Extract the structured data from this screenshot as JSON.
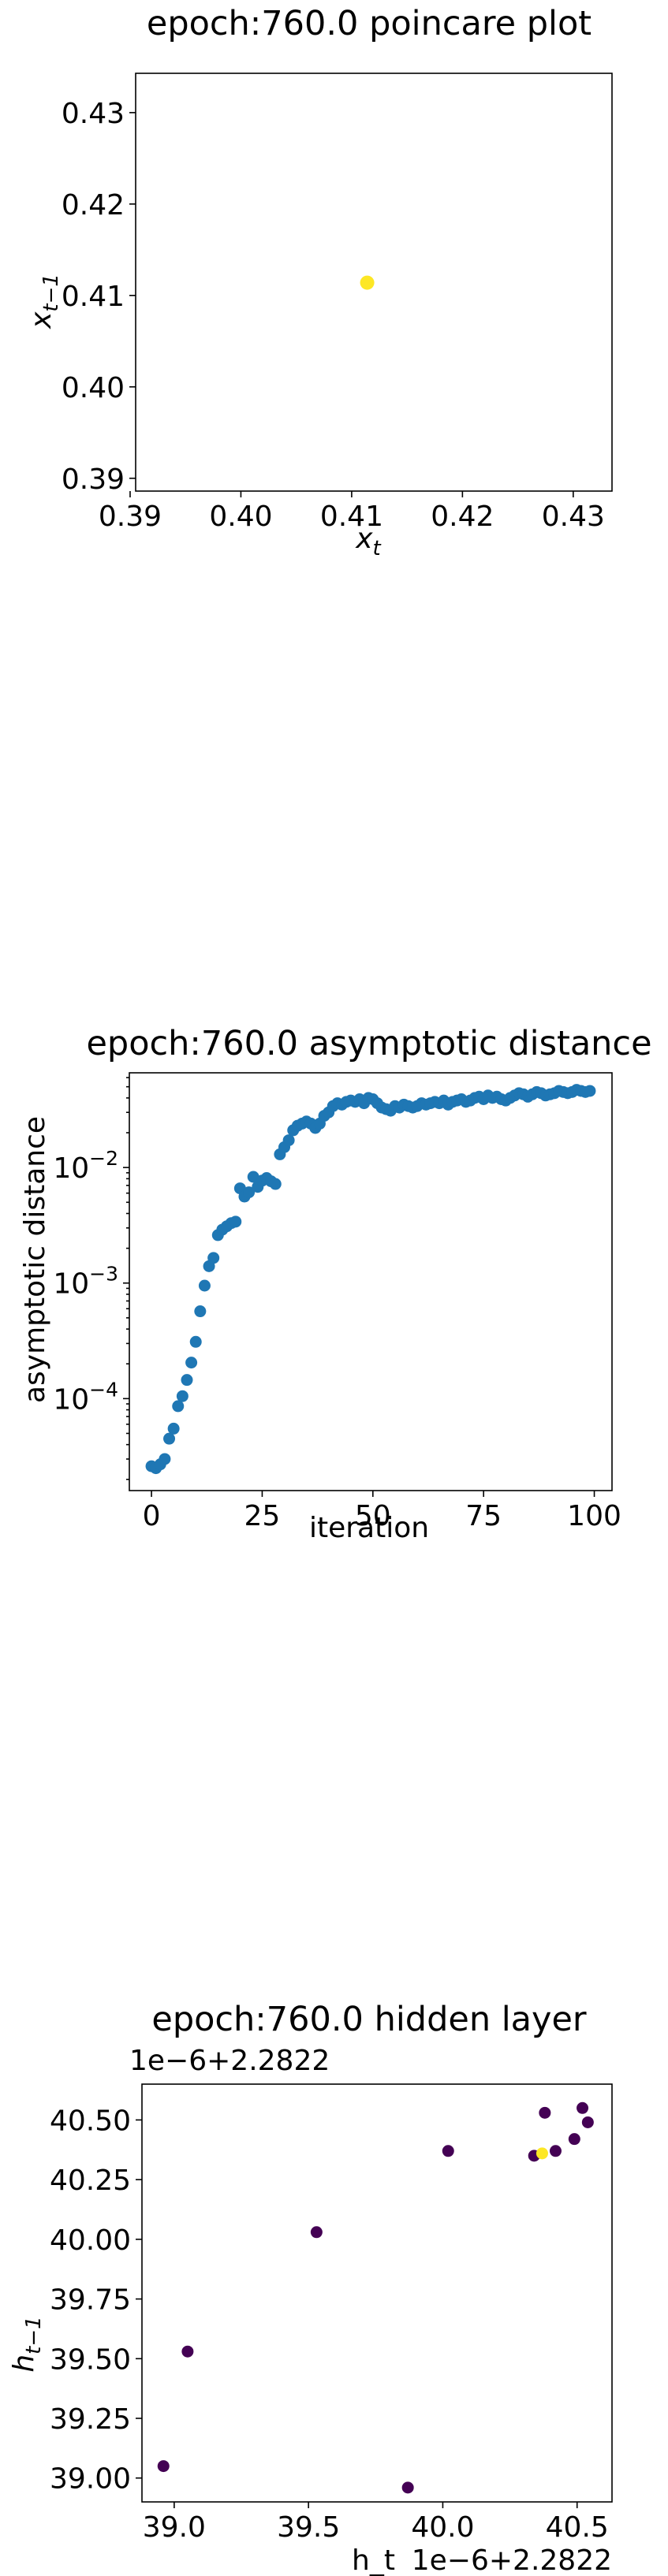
{
  "chart_data": [
    {
      "type": "scatter",
      "title": "epoch:760.0 poincare plot",
      "xlabel": "x_t",
      "ylabel": "x_{t-1}",
      "xlim": [
        0.3905,
        0.4335
      ],
      "ylim": [
        0.3886,
        0.4343
      ],
      "xticks": [
        "0.39",
        "0.40",
        "0.41",
        "0.42",
        "0.43"
      ],
      "yticks": [
        "0.39",
        "0.40",
        "0.41",
        "0.42",
        "0.43"
      ],
      "grid": false,
      "points": [
        {
          "x": 0.4114,
          "y": 0.4114,
          "color": "#fde725"
        }
      ]
    },
    {
      "type": "scatter",
      "title": "epoch:760.0 asymptotic distance",
      "xlabel": "iteration",
      "ylabel": "asymptotic distance",
      "yscale": "log",
      "xlim": [
        -5,
        104
      ],
      "ylim": [
        1.6e-05,
        0.066
      ],
      "xticks": [
        "0",
        "25",
        "50",
        "75",
        "100"
      ],
      "yticks": [
        "10^-4",
        "10^-3",
        "10^-2"
      ],
      "grid": false,
      "color": "#1f77b4",
      "x": [
        0,
        1,
        2,
        3,
        4,
        5,
        6,
        7,
        8,
        9,
        10,
        11,
        12,
        13,
        14,
        15,
        16,
        17,
        18,
        19,
        20,
        21,
        22,
        23,
        24,
        25,
        26,
        27,
        28,
        29,
        30,
        31,
        32,
        33,
        34,
        35,
        36,
        37,
        38,
        39,
        40,
        41,
        42,
        43,
        44,
        45,
        46,
        47,
        48,
        49,
        50,
        51,
        52,
        53,
        54,
        55,
        56,
        57,
        58,
        59,
        60,
        61,
        62,
        63,
        64,
        65,
        66,
        67,
        68,
        69,
        70,
        71,
        72,
        73,
        74,
        75,
        76,
        77,
        78,
        79,
        80,
        81,
        82,
        83,
        84,
        85,
        86,
        87,
        88,
        89,
        90,
        91,
        92,
        93,
        94,
        95,
        96,
        97,
        98,
        99
      ],
      "y": [
        2.6e-05,
        2.5e-05,
        2.7e-05,
        3e-05,
        4.5e-05,
        5.5e-05,
        8.6e-05,
        0.000105,
        0.000145,
        0.000205,
        0.00031,
        0.00057,
        0.00095,
        0.0014,
        0.00165,
        0.0026,
        0.0029,
        0.0031,
        0.0033,
        0.0034,
        0.0066,
        0.0056,
        0.0061,
        0.0083,
        0.0068,
        0.0077,
        0.0081,
        0.0076,
        0.0072,
        0.013,
        0.015,
        0.0172,
        0.021,
        0.023,
        0.024,
        0.025,
        0.024,
        0.022,
        0.024,
        0.028,
        0.03,
        0.034,
        0.036,
        0.035,
        0.037,
        0.038,
        0.037,
        0.039,
        0.036,
        0.04,
        0.039,
        0.036,
        0.033,
        0.032,
        0.031,
        0.034,
        0.033,
        0.035,
        0.034,
        0.033,
        0.034,
        0.036,
        0.035,
        0.036,
        0.037,
        0.036,
        0.038,
        0.035,
        0.037,
        0.038,
        0.039,
        0.037,
        0.038,
        0.04,
        0.041,
        0.039,
        0.042,
        0.04,
        0.041,
        0.039,
        0.038,
        0.04,
        0.042,
        0.044,
        0.043,
        0.041,
        0.043,
        0.045,
        0.044,
        0.042,
        0.043,
        0.044,
        0.046,
        0.045,
        0.044,
        0.045,
        0.047,
        0.046,
        0.045,
        0.046
      ]
    },
    {
      "type": "scatter",
      "title": "epoch:760.0 hidden layer",
      "xlabel": "h_t",
      "ylabel": "h_{t-1}",
      "x_offset_label": "1e−6+2.2822",
      "y_offset_label": "1e−6+2.2822",
      "xlim": [
        38.88,
        40.63
      ],
      "ylim": [
        38.9,
        40.65
      ],
      "xticks": [
        "39.0",
        "39.5",
        "40.0",
        "40.5"
      ],
      "yticks": [
        "39.00",
        "39.25",
        "39.50",
        "39.75",
        "40.00",
        "40.25",
        "40.50"
      ],
      "grid": false,
      "points": [
        {
          "x": 38.96,
          "y": 39.05,
          "color": "#440154"
        },
        {
          "x": 39.05,
          "y": 39.53,
          "color": "#440154"
        },
        {
          "x": 39.53,
          "y": 40.03,
          "color": "#440154"
        },
        {
          "x": 39.87,
          "y": 38.96,
          "color": "#440154"
        },
        {
          "x": 40.02,
          "y": 40.37,
          "color": "#440154"
        },
        {
          "x": 40.34,
          "y": 40.35,
          "color": "#440154"
        },
        {
          "x": 40.38,
          "y": 40.53,
          "color": "#440154"
        },
        {
          "x": 40.42,
          "y": 40.37,
          "color": "#440154"
        },
        {
          "x": 40.49,
          "y": 40.42,
          "color": "#440154"
        },
        {
          "x": 40.52,
          "y": 40.55,
          "color": "#440154"
        },
        {
          "x": 40.54,
          "y": 40.49,
          "color": "#440154"
        },
        {
          "x": 40.37,
          "y": 40.36,
          "color": "#fde725"
        }
      ]
    }
  ]
}
